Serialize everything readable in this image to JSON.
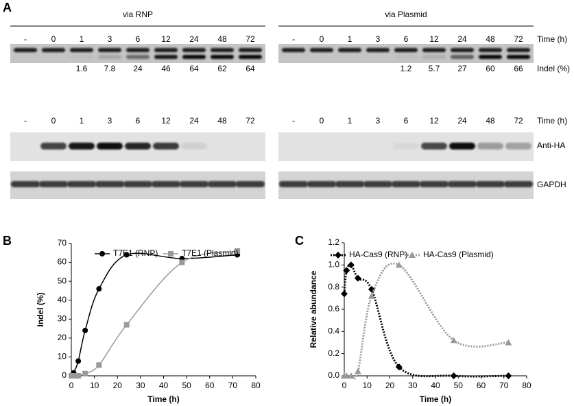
{
  "panel_a": {
    "label": "A",
    "time_label": "Time (h)",
    "indel_label": "Indel (%)",
    "blot_labels": [
      "Anti-HA",
      "GAPDH"
    ],
    "groups": [
      {
        "title": "via RNP",
        "lanes": [
          "-",
          "0",
          "1",
          "3",
          "6",
          "12",
          "24",
          "48",
          "72"
        ],
        "indel": [
          null,
          null,
          1.6,
          7.8,
          24,
          46,
          64,
          62,
          64
        ]
      },
      {
        "title": "via Plasmid",
        "lanes": [
          "-",
          "0",
          "1",
          "3",
          "6",
          "12",
          "24",
          "48",
          "72"
        ],
        "indel": [
          null,
          null,
          null,
          null,
          1.2,
          5.7,
          27,
          60,
          66
        ]
      }
    ]
  },
  "chart_data": [
    {
      "type": "line",
      "panel_label": "B",
      "xlabel": "Time (h)",
      "ylabel": "Indel (%)",
      "smooth": true,
      "line_style": "solid",
      "x": [
        0,
        1,
        3,
        6,
        12,
        24,
        48,
        72
      ],
      "series": [
        {
          "name": "T7E1 (RNP)",
          "color": "#000000",
          "marker": "circle",
          "values": [
            0,
            1.6,
            7.8,
            24,
            46,
            64,
            62,
            64
          ]
        },
        {
          "name": "T7E1 (Plasmid)",
          "color": "#999999",
          "marker": "square",
          "values": [
            0,
            0,
            0,
            1.2,
            5.7,
            27,
            60,
            66
          ]
        }
      ],
      "xlim": [
        0,
        80
      ],
      "xticks": [
        0,
        10,
        20,
        30,
        40,
        50,
        60,
        70,
        80
      ],
      "ylim": [
        0,
        70
      ],
      "yticks": [
        0,
        10,
        20,
        30,
        40,
        50,
        60,
        70
      ],
      "legend": "top",
      "grid": false
    },
    {
      "type": "line",
      "panel_label": "C",
      "xlabel": "Time (h)",
      "ylabel": "Relative abundance",
      "smooth": true,
      "line_style": "dotted",
      "x": [
        0,
        1,
        3,
        6,
        12,
        24,
        48,
        72
      ],
      "series": [
        {
          "name": "HA-Cas9 (RNP)",
          "color": "#000000",
          "marker": "diamond",
          "values": [
            0.74,
            0.95,
            1.0,
            0.88,
            0.78,
            0.08,
            0,
            0
          ]
        },
        {
          "name": "HA-Cas9 (Plasmid)",
          "color": "#999999",
          "marker": "triangle",
          "values": [
            0,
            0,
            0,
            0.04,
            0.72,
            1.0,
            0.32,
            0.3
          ]
        }
      ],
      "xlim": [
        0,
        80
      ],
      "xticks": [
        0,
        10,
        20,
        30,
        40,
        50,
        60,
        70,
        80
      ],
      "ylim": [
        0,
        1.2
      ],
      "yticks": [
        {
          "value": 0,
          "label": "0.0"
        },
        {
          "value": 0.2,
          "label": "0.2"
        },
        {
          "value": 0.4,
          "label": "0.4"
        },
        {
          "value": 0.6,
          "label": "0.6"
        },
        {
          "value": 0.8,
          "label": "0.8"
        },
        {
          "value": 1.0,
          "label": "1.0"
        },
        {
          "value": 1.2,
          "label": "1.2"
        }
      ],
      "legend": "top",
      "grid": false
    }
  ]
}
